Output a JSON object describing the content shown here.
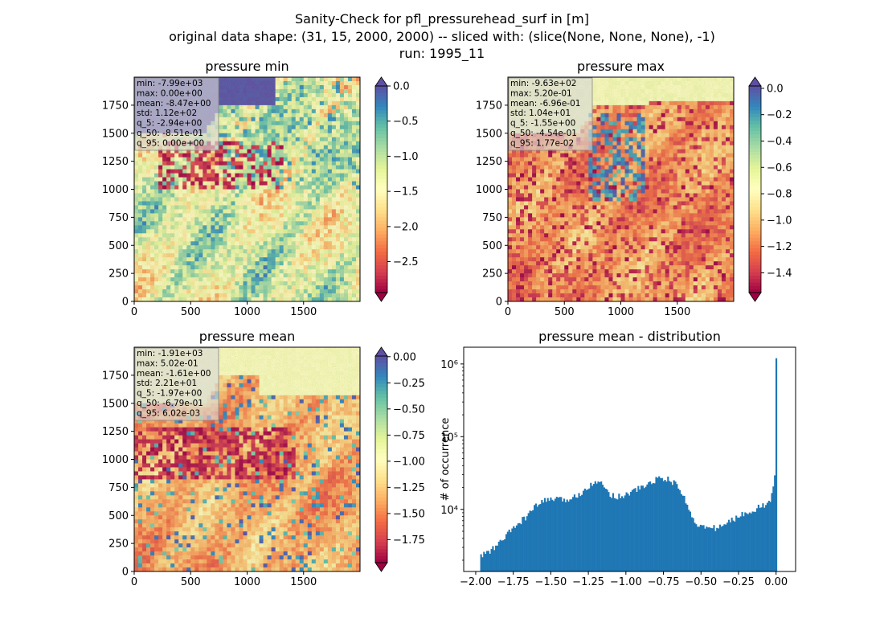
{
  "figure": {
    "title_line1": "Sanity-Check for pfl_pressurehead_surf in [m]",
    "title_line2": "original data shape: (31, 15, 2000, 2000) -- sliced with: (slice(None, None, None), -1)",
    "title_line3": "run: 1995_11"
  },
  "colormap": {
    "name": "Spectral",
    "stops": [
      "#9e0142",
      "#d53e4f",
      "#f46d43",
      "#fdae61",
      "#fee08b",
      "#ffffbf",
      "#e6f598",
      "#abdda4",
      "#66c2a5",
      "#3288bd",
      "#5e4fa2"
    ],
    "over_color": "#5e4fa2",
    "under_color": "#9e0142"
  },
  "stat_box_color": "#d9d9d9",
  "histogram_color": "#1f77b4",
  "chart_data": [
    {
      "type": "heatmap",
      "title": "pressure min",
      "xlim": [
        0,
        2000
      ],
      "ylim": [
        0,
        2000
      ],
      "x_ticks": [
        "0",
        "500",
        "1000",
        "1500"
      ],
      "y_ticks": [
        "0",
        "250",
        "500",
        "750",
        "1000",
        "1250",
        "1500",
        "1750"
      ],
      "colorbar": {
        "vmin": -2.94,
        "vmax": 0.0,
        "ticks": [
          0.0,
          -0.5,
          -1.0,
          -1.5,
          -2.0,
          -2.5
        ],
        "tick_labels": [
          "0.0",
          "−0.5",
          "−1.0",
          "−1.5",
          "−2.0",
          "−2.5"
        ],
        "extend": "both"
      },
      "stats": [
        "min: -7.99e+03",
        "max: 0.00e+00",
        "mean: -8.47e+00",
        "std: 1.12e+02",
        "q_5: -2.94e+00",
        "q_50: -8.51e-01",
        "q_95: 0.00e+00"
      ]
    },
    {
      "type": "heatmap",
      "title": "pressure max",
      "xlim": [
        0,
        2000
      ],
      "ylim": [
        0,
        2000
      ],
      "x_ticks": [
        "0",
        "500",
        "1000",
        "1500"
      ],
      "y_ticks": [
        "0",
        "250",
        "500",
        "750",
        "1000",
        "1250",
        "1500",
        "1750"
      ],
      "colorbar": {
        "vmin": -1.55,
        "vmax": 0.0177,
        "ticks": [
          0.0,
          -0.2,
          -0.4,
          -0.6,
          -0.8,
          -1.0,
          -1.2,
          -1.4
        ],
        "tick_labels": [
          "0.0",
          "−0.2",
          "−0.4",
          "−0.6",
          "−0.8",
          "−1.0",
          "−1.2",
          "−1.4"
        ],
        "extend": "both"
      },
      "stats": [
        "min: -9.63e+02",
        "max: 5.20e-01",
        "mean: -6.96e-01",
        "std: 1.04e+01",
        "q_5: -1.55e+00",
        "q_50: -4.54e-01",
        "q_95: 1.77e-02"
      ]
    },
    {
      "type": "heatmap",
      "title": "pressure mean",
      "xlim": [
        0,
        2000
      ],
      "ylim": [
        0,
        2000
      ],
      "x_ticks": [
        "0",
        "500",
        "1000",
        "1500"
      ],
      "y_ticks": [
        "0",
        "250",
        "500",
        "750",
        "1000",
        "1250",
        "1500",
        "1750"
      ],
      "colorbar": {
        "vmin": -1.97,
        "vmax": 0.00602,
        "ticks": [
          0.0,
          -0.25,
          -0.5,
          -0.75,
          -1.0,
          -1.25,
          -1.5,
          -1.75
        ],
        "tick_labels": [
          "0.00",
          "−0.25",
          "−0.50",
          "−0.75",
          "−1.00",
          "−1.25",
          "−1.50",
          "−1.75"
        ],
        "extend": "both"
      },
      "stats": [
        "min: -1.91e+03",
        "max: 5.02e-01",
        "mean: -1.61e+00",
        "std: 2.21e+01",
        "q_5: -1.97e+00",
        "q_50: -6.79e-01",
        "q_95: 6.02e-03"
      ]
    },
    {
      "type": "bar",
      "title": "pressure mean - distribution",
      "ylabel": "# of occurrence",
      "xlabel": "",
      "yscale": "log",
      "xlim": [
        -2.08,
        0.13
      ],
      "ylim": [
        1400,
        1700000
      ],
      "x_ticks": [
        -2.0,
        -1.75,
        -1.5,
        -1.25,
        -1.0,
        -0.75,
        -0.5,
        -0.25,
        0.0
      ],
      "x_tick_labels": [
        "−2.00",
        "−1.75",
        "−1.50",
        "−1.25",
        "−1.00",
        "−0.75",
        "−0.50",
        "−0.25",
        "0.00"
      ],
      "y_ticks": [
        10000,
        100000,
        1000000
      ],
      "y_tick_labels": [
        "10⁴",
        "10⁵",
        "10⁶"
      ],
      "bin_range": [
        -1.97,
        0.006
      ],
      "bin_count": 200,
      "anchors": [
        [
          -1.97,
          2200
        ],
        [
          -1.94,
          2500
        ],
        [
          -1.9,
          2700
        ],
        [
          -1.85,
          3300
        ],
        [
          -1.8,
          4300
        ],
        [
          -1.75,
          5500
        ],
        [
          -1.7,
          6800
        ],
        [
          -1.65,
          8500
        ],
        [
          -1.6,
          11000
        ],
        [
          -1.55,
          13000
        ],
        [
          -1.5,
          14000
        ],
        [
          -1.45,
          13500
        ],
        [
          -1.4,
          13500
        ],
        [
          -1.35,
          14500
        ],
        [
          -1.3,
          17000
        ],
        [
          -1.25,
          21000
        ],
        [
          -1.2,
          25000
        ],
        [
          -1.15,
          21000
        ],
        [
          -1.1,
          16000
        ],
        [
          -1.05,
          15000
        ],
        [
          -1.0,
          16000
        ],
        [
          -0.95,
          18000
        ],
        [
          -0.9,
          20000
        ],
        [
          -0.85,
          22000
        ],
        [
          -0.8,
          26000
        ],
        [
          -0.75,
          27000
        ],
        [
          -0.7,
          25000
        ],
        [
          -0.65,
          20000
        ],
        [
          -0.6,
          13000
        ],
        [
          -0.57,
          8500
        ],
        [
          -0.53,
          6500
        ],
        [
          -0.5,
          5800
        ],
        [
          -0.45,
          5500
        ],
        [
          -0.4,
          5600
        ],
        [
          -0.35,
          6000
        ],
        [
          -0.3,
          7000
        ],
        [
          -0.25,
          8000
        ],
        [
          -0.2,
          9000
        ],
        [
          -0.15,
          10000
        ],
        [
          -0.1,
          11000
        ],
        [
          -0.05,
          12000
        ],
        [
          -0.03,
          15000
        ],
        [
          -0.015,
          24000
        ],
        [
          -0.005,
          30000
        ],
        [
          0.0,
          1200000
        ]
      ]
    }
  ]
}
